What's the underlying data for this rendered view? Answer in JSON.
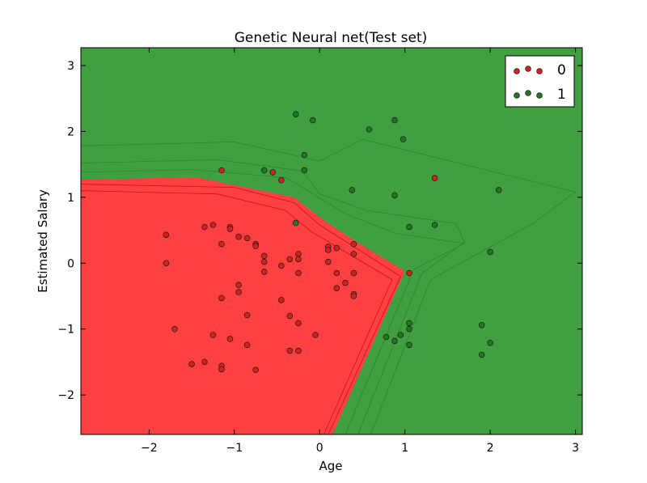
{
  "chart_data": {
    "type": "scatter",
    "title": "Genetic Neural net(Test set)",
    "xlabel": "Age",
    "ylabel": "Estimated Salary",
    "xlim": [
      -2.8,
      3.08
    ],
    "ylim": [
      -2.6,
      3.27
    ],
    "xticks": [
      -2,
      -1,
      0,
      1,
      2,
      3
    ],
    "yticks": [
      -2,
      -1,
      0,
      1,
      2,
      3
    ],
    "grid": false,
    "legend_position": "top-right",
    "colors": {
      "class_0_point": "#d62020",
      "class_1_point": "#1e7a1e",
      "class_0_region": "#ff4040",
      "class_1_region": "#40a040",
      "contour_line_0": "#cc1010",
      "contour_line_1": "#2a8a2a",
      "point_edge": "#222222"
    },
    "decision_region_class_0": [
      [
        -2.8,
        1.27
      ],
      [
        -1.55,
        1.3
      ],
      [
        -1.4,
        1.29
      ],
      [
        -0.3,
        1.0
      ],
      [
        0.05,
        0.65
      ],
      [
        0.4,
        0.35
      ],
      [
        1.0,
        -0.12
      ],
      [
        0.15,
        -2.6
      ],
      [
        -2.8,
        -2.6
      ]
    ],
    "contour_lines_class_0": [
      [
        [
          -2.8,
          1.2
        ],
        [
          -1.0,
          1.15
        ],
        [
          -0.3,
          0.92
        ],
        [
          0.0,
          0.58
        ],
        [
          0.95,
          -0.2
        ],
        [
          0.1,
          -2.6
        ]
      ],
      [
        [
          -2.8,
          1.1
        ],
        [
          -1.2,
          1.05
        ],
        [
          -0.4,
          0.8
        ],
        [
          -0.1,
          0.48
        ],
        [
          0.85,
          -0.25
        ],
        [
          0.05,
          -2.6
        ]
      ]
    ],
    "contour_lines_class_1": [
      [
        [
          -2.8,
          1.38
        ],
        [
          -1.5,
          1.42
        ],
        [
          -0.4,
          1.3
        ],
        [
          -0.2,
          1.15
        ],
        [
          0.3,
          0.75
        ],
        [
          0.9,
          0.45
        ],
        [
          1.7,
          0.3
        ],
        [
          1.1,
          -0.1
        ],
        [
          0.3,
          -2.6
        ]
      ],
      [
        [
          -2.8,
          1.52
        ],
        [
          -1.2,
          1.57
        ],
        [
          -0.2,
          1.4
        ],
        [
          0.0,
          1.05
        ],
        [
          0.55,
          0.8
        ],
        [
          1.6,
          0.6
        ],
        [
          1.7,
          0.32
        ],
        [
          1.2,
          -0.15
        ],
        [
          0.45,
          -2.6
        ]
      ],
      [
        [
          -2.8,
          1.78
        ],
        [
          -1.0,
          1.84
        ],
        [
          0.0,
          1.55
        ],
        [
          0.5,
          1.88
        ],
        [
          3.0,
          1.08
        ],
        [
          2.5,
          0.6
        ],
        [
          1.3,
          -0.25
        ],
        [
          0.6,
          -2.6
        ]
      ]
    ],
    "series": [
      {
        "name": "0",
        "class": 0,
        "points": [
          [
            -1.8,
            0.43
          ],
          [
            -1.8,
            0.0
          ],
          [
            -1.7,
            -1.0
          ],
          [
            -1.5,
            -1.53
          ],
          [
            -1.35,
            -1.5
          ],
          [
            -1.35,
            0.55
          ],
          [
            -1.25,
            0.58
          ],
          [
            -1.25,
            -1.09
          ],
          [
            -1.15,
            1.41
          ],
          [
            -1.15,
            0.29
          ],
          [
            -1.15,
            -0.53
          ],
          [
            -1.15,
            -1.56
          ],
          [
            -1.15,
            -1.61
          ],
          [
            -1.05,
            0.55
          ],
          [
            -1.05,
            0.52
          ],
          [
            -1.05,
            -1.15
          ],
          [
            -0.95,
            0.4
          ],
          [
            -0.95,
            -0.33
          ],
          [
            -0.95,
            -0.44
          ],
          [
            -0.85,
            0.38
          ],
          [
            -0.85,
            -0.79
          ],
          [
            -0.85,
            -1.24
          ],
          [
            -0.75,
            0.29
          ],
          [
            -0.75,
            0.26
          ],
          [
            -0.75,
            -1.62
          ],
          [
            -0.65,
            0.11
          ],
          [
            -0.65,
            0.02
          ],
          [
            -0.65,
            -0.13
          ],
          [
            -0.55,
            1.38
          ],
          [
            -0.45,
            1.26
          ],
          [
            -0.45,
            -0.04
          ],
          [
            -0.45,
            -0.56
          ],
          [
            -0.35,
            0.06
          ],
          [
            -0.35,
            -0.8
          ],
          [
            -0.35,
            -1.33
          ],
          [
            -0.25,
            0.14
          ],
          [
            -0.25,
            0.06
          ],
          [
            -0.25,
            -0.15
          ],
          [
            -0.25,
            -0.91
          ],
          [
            -0.25,
            -1.33
          ],
          [
            -0.05,
            -1.09
          ],
          [
            0.1,
            0.25
          ],
          [
            0.1,
            0.2
          ],
          [
            0.1,
            0.02
          ],
          [
            0.2,
            0.23
          ],
          [
            0.2,
            -0.15
          ],
          [
            0.2,
            -0.38
          ],
          [
            0.3,
            -0.3
          ],
          [
            0.4,
            0.29
          ],
          [
            0.4,
            0.14
          ],
          [
            0.4,
            -0.15
          ],
          [
            0.4,
            -0.47
          ],
          [
            0.4,
            -0.5
          ],
          [
            1.05,
            -0.15
          ],
          [
            1.35,
            1.29
          ]
        ]
      },
      {
        "name": "1",
        "class": 1,
        "points": [
          [
            -0.28,
            2.26
          ],
          [
            -0.08,
            2.17
          ],
          [
            -0.18,
            1.64
          ],
          [
            -0.18,
            1.41
          ],
          [
            -0.65,
            1.41
          ],
          [
            -0.28,
            0.61
          ],
          [
            0.38,
            1.11
          ],
          [
            0.58,
            2.03
          ],
          [
            0.88,
            2.17
          ],
          [
            0.98,
            1.88
          ],
          [
            0.88,
            1.03
          ],
          [
            1.05,
            0.55
          ],
          [
            1.35,
            0.58
          ],
          [
            2.1,
            1.11
          ],
          [
            2.0,
            0.17
          ],
          [
            0.78,
            -1.12
          ],
          [
            0.88,
            -1.18
          ],
          [
            0.95,
            -1.09
          ],
          [
            1.05,
            -0.91
          ],
          [
            1.05,
            -1.0
          ],
          [
            1.05,
            -1.24
          ],
          [
            1.9,
            -0.94
          ],
          [
            2.0,
            -1.21
          ],
          [
            1.9,
            -1.39
          ]
        ]
      }
    ]
  }
}
